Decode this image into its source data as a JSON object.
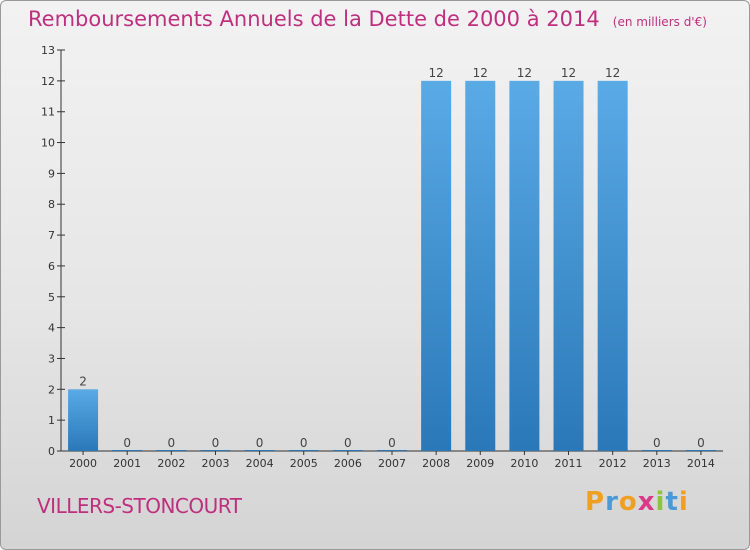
{
  "header": {
    "title": "Remboursements Annuels de la Dette de 2000 à 2014",
    "unit": "(en milliers d'€)"
  },
  "footer": {
    "commune": "VILLERS-STONCOURT",
    "logo": "Proxiti"
  },
  "colors": {
    "title": "#bf2f7f",
    "bar_top": "#5aaae6",
    "bar_bottom": "#2a78b8"
  },
  "chart_data": {
    "type": "bar",
    "title": "Remboursements Annuels de la Dette de 2000 à 2014",
    "xlabel": "",
    "ylabel": "",
    "categories": [
      "2000",
      "2001",
      "2002",
      "2003",
      "2004",
      "2005",
      "2006",
      "2007",
      "2008",
      "2009",
      "2010",
      "2011",
      "2012",
      "2013",
      "2014"
    ],
    "values": [
      2,
      0,
      0,
      0,
      0,
      0,
      0,
      0,
      12,
      12,
      12,
      12,
      12,
      0,
      0
    ],
    "ylim": [
      0,
      13
    ],
    "yticks": [
      0,
      1,
      2,
      3,
      4,
      5,
      6,
      7,
      8,
      9,
      10,
      11,
      12,
      13
    ],
    "grid": false,
    "legend": "none"
  }
}
